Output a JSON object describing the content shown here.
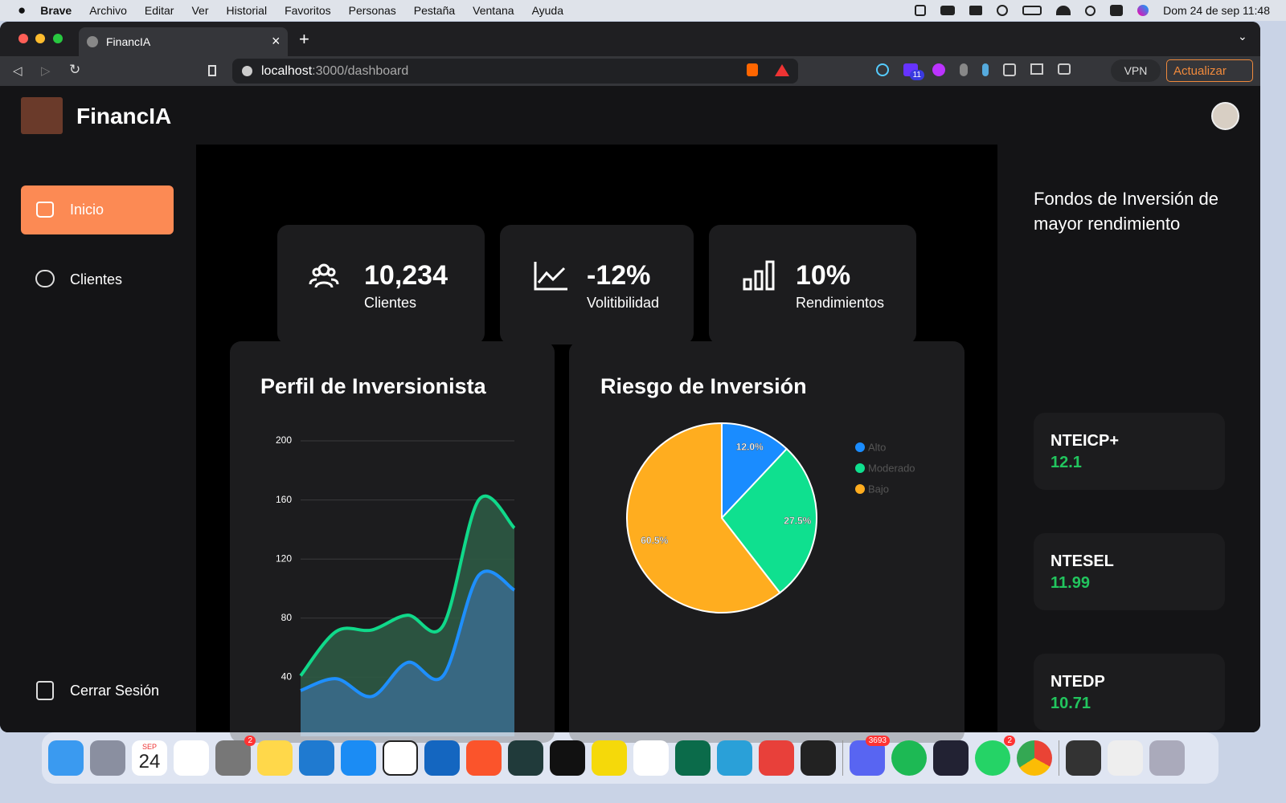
{
  "menubar": {
    "app": "Brave",
    "items": [
      "Archivo",
      "Editar",
      "Ver",
      "Historial",
      "Favoritos",
      "Personas",
      "Pestaña",
      "Ventana",
      "Ayuda"
    ],
    "clock": "Dom 24 de sep  11:48"
  },
  "browser": {
    "tab": "FinancIA",
    "url_host": "localhost",
    "url_path": ":3000/dashboard",
    "extension_badge": "11",
    "vpn": "VPN",
    "update": "Actualizar"
  },
  "app": {
    "brand": "FinancIA",
    "nav": [
      "Inicio",
      "Clientes"
    ],
    "logout": "Cerrar Sesión",
    "stats": [
      {
        "value": "10,234",
        "label": "Clientes"
      },
      {
        "value": "-12%",
        "label": "Volitibilidad"
      },
      {
        "value": "10%",
        "label": "Rendimientos"
      }
    ],
    "funds_title": "Fondos de Inversión de mayor rendimiento",
    "funds": [
      {
        "name": "NTEICP+",
        "value": 12.1
      },
      {
        "name": "NTESEL",
        "value": 11.99
      },
      {
        "name": "NTEDP",
        "value": 10.71
      }
    ]
  },
  "chart_data": [
    {
      "type": "area",
      "title": "Perfil de Inversionista",
      "categories": [
        null,
        null,
        null,
        null,
        null,
        null,
        null
      ],
      "series": [
        {
          "color": "#10d98a",
          "fill": "#2d5a44",
          "values": [
            41,
            71,
            72,
            82,
            75,
            160,
            141
          ]
        },
        {
          "color": "#1e8fff",
          "fill": "#3a6a8a",
          "values": [
            31,
            39,
            27,
            50,
            41,
            109,
            99
          ]
        }
      ],
      "ylim": [
        0,
        200
      ],
      "yticks": [
        40,
        80,
        120,
        160,
        200
      ],
      "grid": true
    },
    {
      "type": "pie",
      "title": "Riesgo de Inversión",
      "categories": [
        "Alto",
        "Moderado",
        "Bajo"
      ],
      "values": [
        12,
        27.5,
        60.5
      ],
      "value_labels": [
        "12.0%",
        "27.5%",
        "60.5%"
      ],
      "colors": [
        "#1a8cff",
        "#0fe08f",
        "#ffad1f"
      ],
      "legend": "right"
    }
  ],
  "dock": {
    "calendar_month": "SEP",
    "calendar_day": "24",
    "settings_badge": "2",
    "discord_badge": "3693",
    "whatsapp_badge": "2"
  }
}
